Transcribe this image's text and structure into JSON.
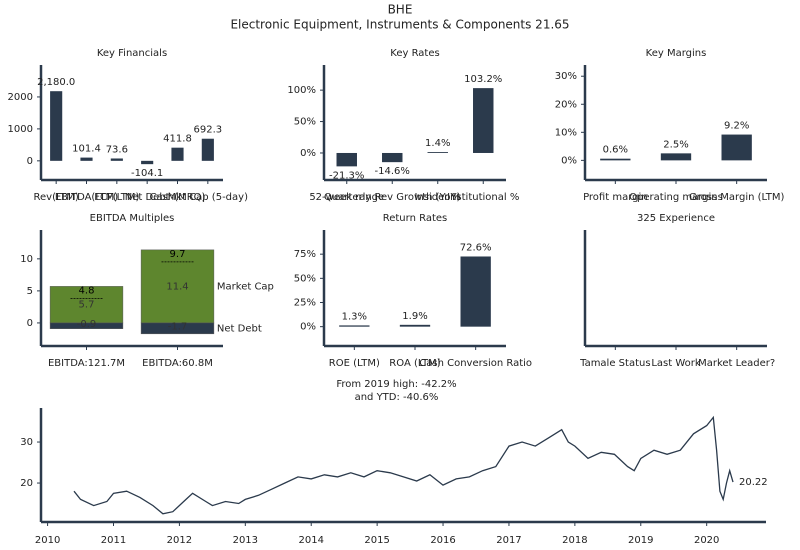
{
  "header": {
    "title": "BHE",
    "subtitle": "Electronic Equipment, Instruments & Components 21.65"
  },
  "chart_data": [
    {
      "type": "bar",
      "title": "Key Financials",
      "categories": [
        "Rev(LTM)",
        "EBITDA(LTM)",
        "FCF(LTM)",
        "Net Debt",
        "Cash(MRQ)",
        "Mkt Cap (5-day)"
      ],
      "values": [
        2180,
        101.4,
        73.6,
        -104.1,
        411.8,
        692.3
      ],
      "value_labels": [
        "2,180.0",
        "101.4",
        "73.6",
        "-104.1",
        "411.8",
        "692.3"
      ],
      "color": "#2b3a4c",
      "ylim": [
        -600,
        3000
      ],
      "yticks": [
        0,
        1000,
        2000
      ]
    },
    {
      "type": "bar",
      "title": "Key Rates",
      "categories": [
        "52-week range",
        "Quarterly Rev Growth (YoY)",
        "Insider %",
        "Institutional %"
      ],
      "values": [
        -21.3,
        -14.6,
        1.4,
        103.2
      ],
      "value_labels": [
        "-21.3%",
        "-14.6%",
        "1.4%",
        "103.2%"
      ],
      "color": "#2b3a4c",
      "ylim": [
        -43,
        140
      ],
      "yticks": [
        {
          "value": 0,
          "label": "0%"
        },
        {
          "value": 50,
          "label": "50%"
        },
        {
          "value": 100,
          "label": "100%"
        }
      ]
    },
    {
      "type": "bar",
      "title": "Key Margins",
      "categories": [
        "Profit margin",
        "Operating margins",
        "Gross Margin (LTM)"
      ],
      "values": [
        0.6,
        2.5,
        9.2
      ],
      "value_labels": [
        "0.6%",
        "2.5%",
        "9.2%"
      ],
      "color": "#2b3a4c",
      "ylim": [
        -7,
        34
      ],
      "yticks": [
        {
          "value": 0,
          "label": "0%"
        },
        {
          "value": 10,
          "label": "10%"
        },
        {
          "value": 20,
          "label": "20%"
        },
        {
          "value": 30,
          "label": "30%"
        }
      ]
    },
    {
      "type": "stacked-bar",
      "title": "EBITDA Multiples",
      "categories": [
        "EBITDA:121.7M",
        "EBITDA:60.8M"
      ],
      "series": [
        {
          "name": "Market Cap",
          "color": "#5e862e",
          "values": [
            5.7,
            11.4
          ]
        },
        {
          "name": "Net Debt",
          "color": "#2b3a4c",
          "values": [
            -0.9,
            -1.7
          ]
        }
      ],
      "totals": [
        4.8,
        9.7
      ],
      "ylim": [
        -3.6,
        14.5
      ],
      "yticks": [
        0,
        5,
        10
      ]
    },
    {
      "type": "bar",
      "title": "Return Rates",
      "categories": [
        "ROE (LTM)",
        "ROA (LTM)",
        "Cash Conversion Ratio"
      ],
      "values": [
        1.3,
        1.9,
        72.6
      ],
      "value_labels": [
        "1.3%",
        "1.9%",
        "72.6%"
      ],
      "color": "#2b3a4c",
      "ylim": [
        -20,
        100
      ],
      "yticks": [
        {
          "value": 0,
          "label": "0%"
        },
        {
          "value": 25,
          "label": "25%"
        },
        {
          "value": 50,
          "label": "50%"
        },
        {
          "value": 75,
          "label": "75%"
        }
      ]
    },
    {
      "type": "bar",
      "title": "325 Experience",
      "categories": [
        "Tamale Status",
        "Last Work",
        "Market Leader?"
      ]
    },
    {
      "type": "line",
      "annotation": [
        "From 2019 high: -42.2%",
        "and YTD: -40.6%"
      ],
      "x": [
        2010.4,
        2010.5,
        2010.7,
        2010.9,
        2011.0,
        2011.2,
        2011.4,
        2011.6,
        2011.75,
        2011.9,
        2012.1,
        2012.2,
        2012.4,
        2012.5,
        2012.7,
        2012.9,
        2013.0,
        2013.2,
        2013.4,
        2013.6,
        2013.8,
        2014.0,
        2014.2,
        2014.4,
        2014.6,
        2014.8,
        2015.0,
        2015.2,
        2015.4,
        2015.6,
        2015.8,
        2016.0,
        2016.2,
        2016.4,
        2016.6,
        2016.8,
        2017.0,
        2017.2,
        2017.4,
        2017.6,
        2017.8,
        2017.9,
        2018.0,
        2018.2,
        2018.4,
        2018.6,
        2018.8,
        2018.9,
        2019.0,
        2019.2,
        2019.4,
        2019.6,
        2019.8,
        2020.0,
        2020.1,
        2020.15,
        2020.2,
        2020.25,
        2020.3,
        2020.35,
        2020.4
      ],
      "values": [
        18,
        16,
        14.5,
        15.5,
        17.5,
        18,
        16.5,
        14.5,
        12.5,
        13,
        16,
        17.5,
        15.5,
        14.5,
        15.5,
        15,
        16,
        17,
        18.5,
        20,
        21.5,
        21,
        22,
        21.5,
        22.5,
        21.5,
        23,
        22.5,
        21.5,
        20.5,
        22,
        19.5,
        21,
        21.5,
        23,
        24,
        29,
        30,
        29,
        31,
        33,
        30,
        29,
        26,
        27.5,
        27,
        24,
        23,
        26,
        28,
        27,
        28,
        32,
        34,
        36,
        28,
        18,
        16,
        20,
        23,
        20.22
      ],
      "color": "#2b3a4c",
      "xlim": [
        2009.9,
        2020.9
      ],
      "xticks": [
        2010,
        2011,
        2012,
        2013,
        2014,
        2015,
        2016,
        2017,
        2018,
        2019,
        2020
      ],
      "ylim": [
        10.5,
        38.3
      ],
      "yticks": [
        20,
        30
      ]
    }
  ]
}
